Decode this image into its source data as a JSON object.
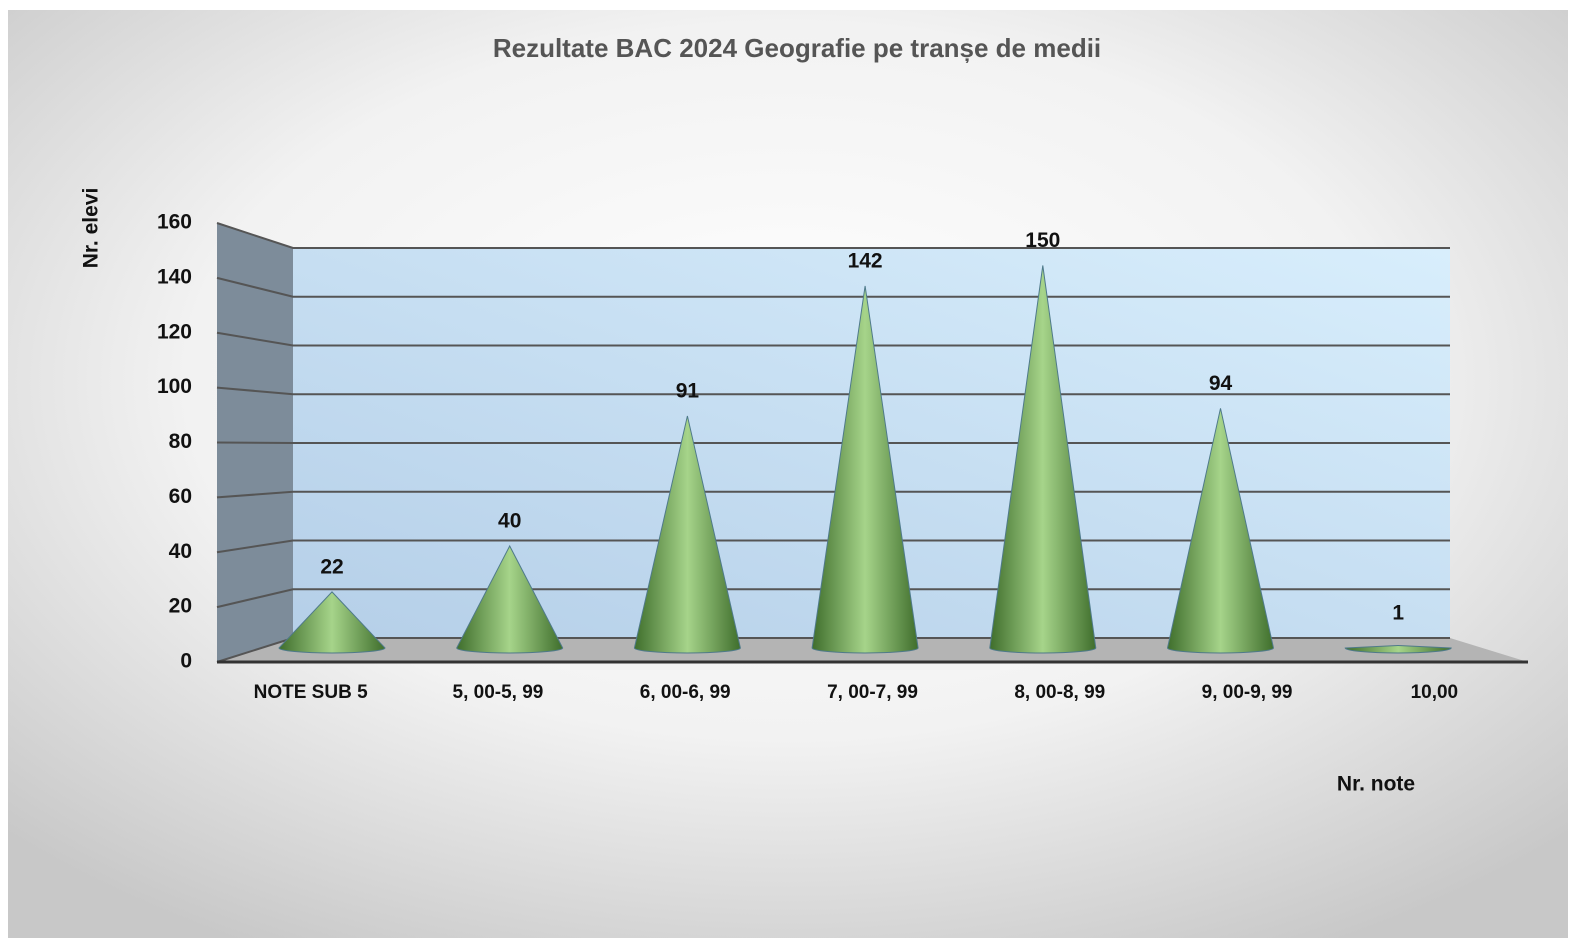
{
  "chart_data": {
    "type": "cone",
    "title": "Rezultate BAC 2024 Geografie pe tranșe de medii",
    "x_label": "Nr. note",
    "y_label": "Nr. elevi",
    "categories": [
      "NOTE SUB 5",
      "5, 00-5, 99",
      "6, 00-6, 99",
      "7, 00-7, 99",
      "8, 00-8, 99",
      "9, 00-9, 99",
      "10,00"
    ],
    "values": [
      22,
      40,
      91,
      142,
      150,
      94,
      1
    ],
    "color": "#6a9a4a",
    "ylim": [
      0,
      160
    ],
    "yticks": [
      0,
      20,
      40,
      60,
      80,
      100,
      120,
      140,
      160
    ],
    "grid": true
  }
}
